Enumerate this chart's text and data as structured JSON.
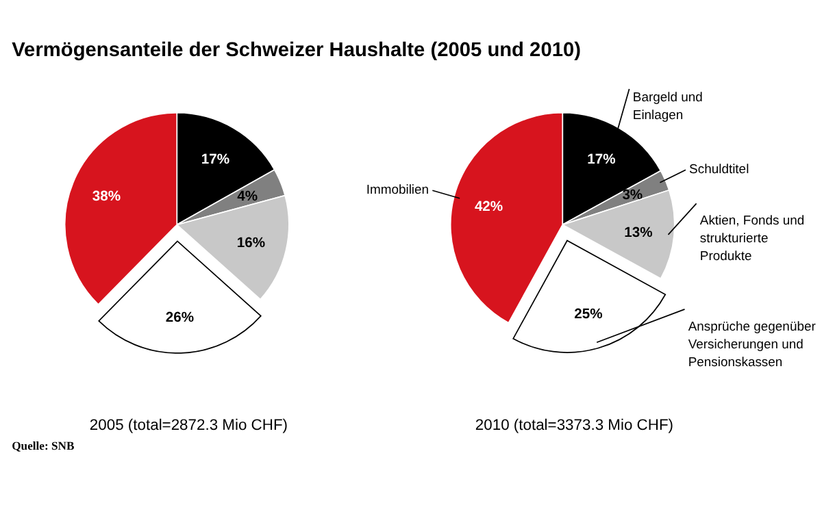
{
  "chart_data": [
    {
      "type": "pie",
      "title": "Vermögensanteile der Schweizer Haushalte (2005 und 2010)",
      "xlabel": "2005 (total=2872.3 Mio CHF)",
      "categories": [
        null,
        null,
        null,
        null,
        null
      ],
      "values": [
        17,
        4,
        16,
        26,
        38
      ],
      "value_labels": [
        "17%",
        "4%",
        "16%",
        "26%",
        "38%"
      ],
      "colors": [
        "#000000",
        "#808080",
        "#c8c8c8",
        "#ffffff",
        "#d7141e"
      ],
      "annotations": [
        "Quelle: SNB"
      ]
    },
    {
      "type": "pie",
      "xlabel": "2010 (total=3373.3 Mio CHF)",
      "categories": [
        "Bargeld und Einlagen",
        "Schuldtitel",
        "Aktien, Fonds und strukturierte Produkte",
        "Ansprüche gegenüber Versicherungen und Pensionskassen",
        "Immobilien"
      ],
      "values": [
        17,
        3,
        13,
        25,
        42
      ],
      "value_labels": [
        "17%",
        "3%",
        "13%",
        "25%",
        "42%"
      ],
      "colors": [
        "#000000",
        "#808080",
        "#c8c8c8",
        "#ffffff",
        "#d7141e"
      ]
    }
  ]
}
